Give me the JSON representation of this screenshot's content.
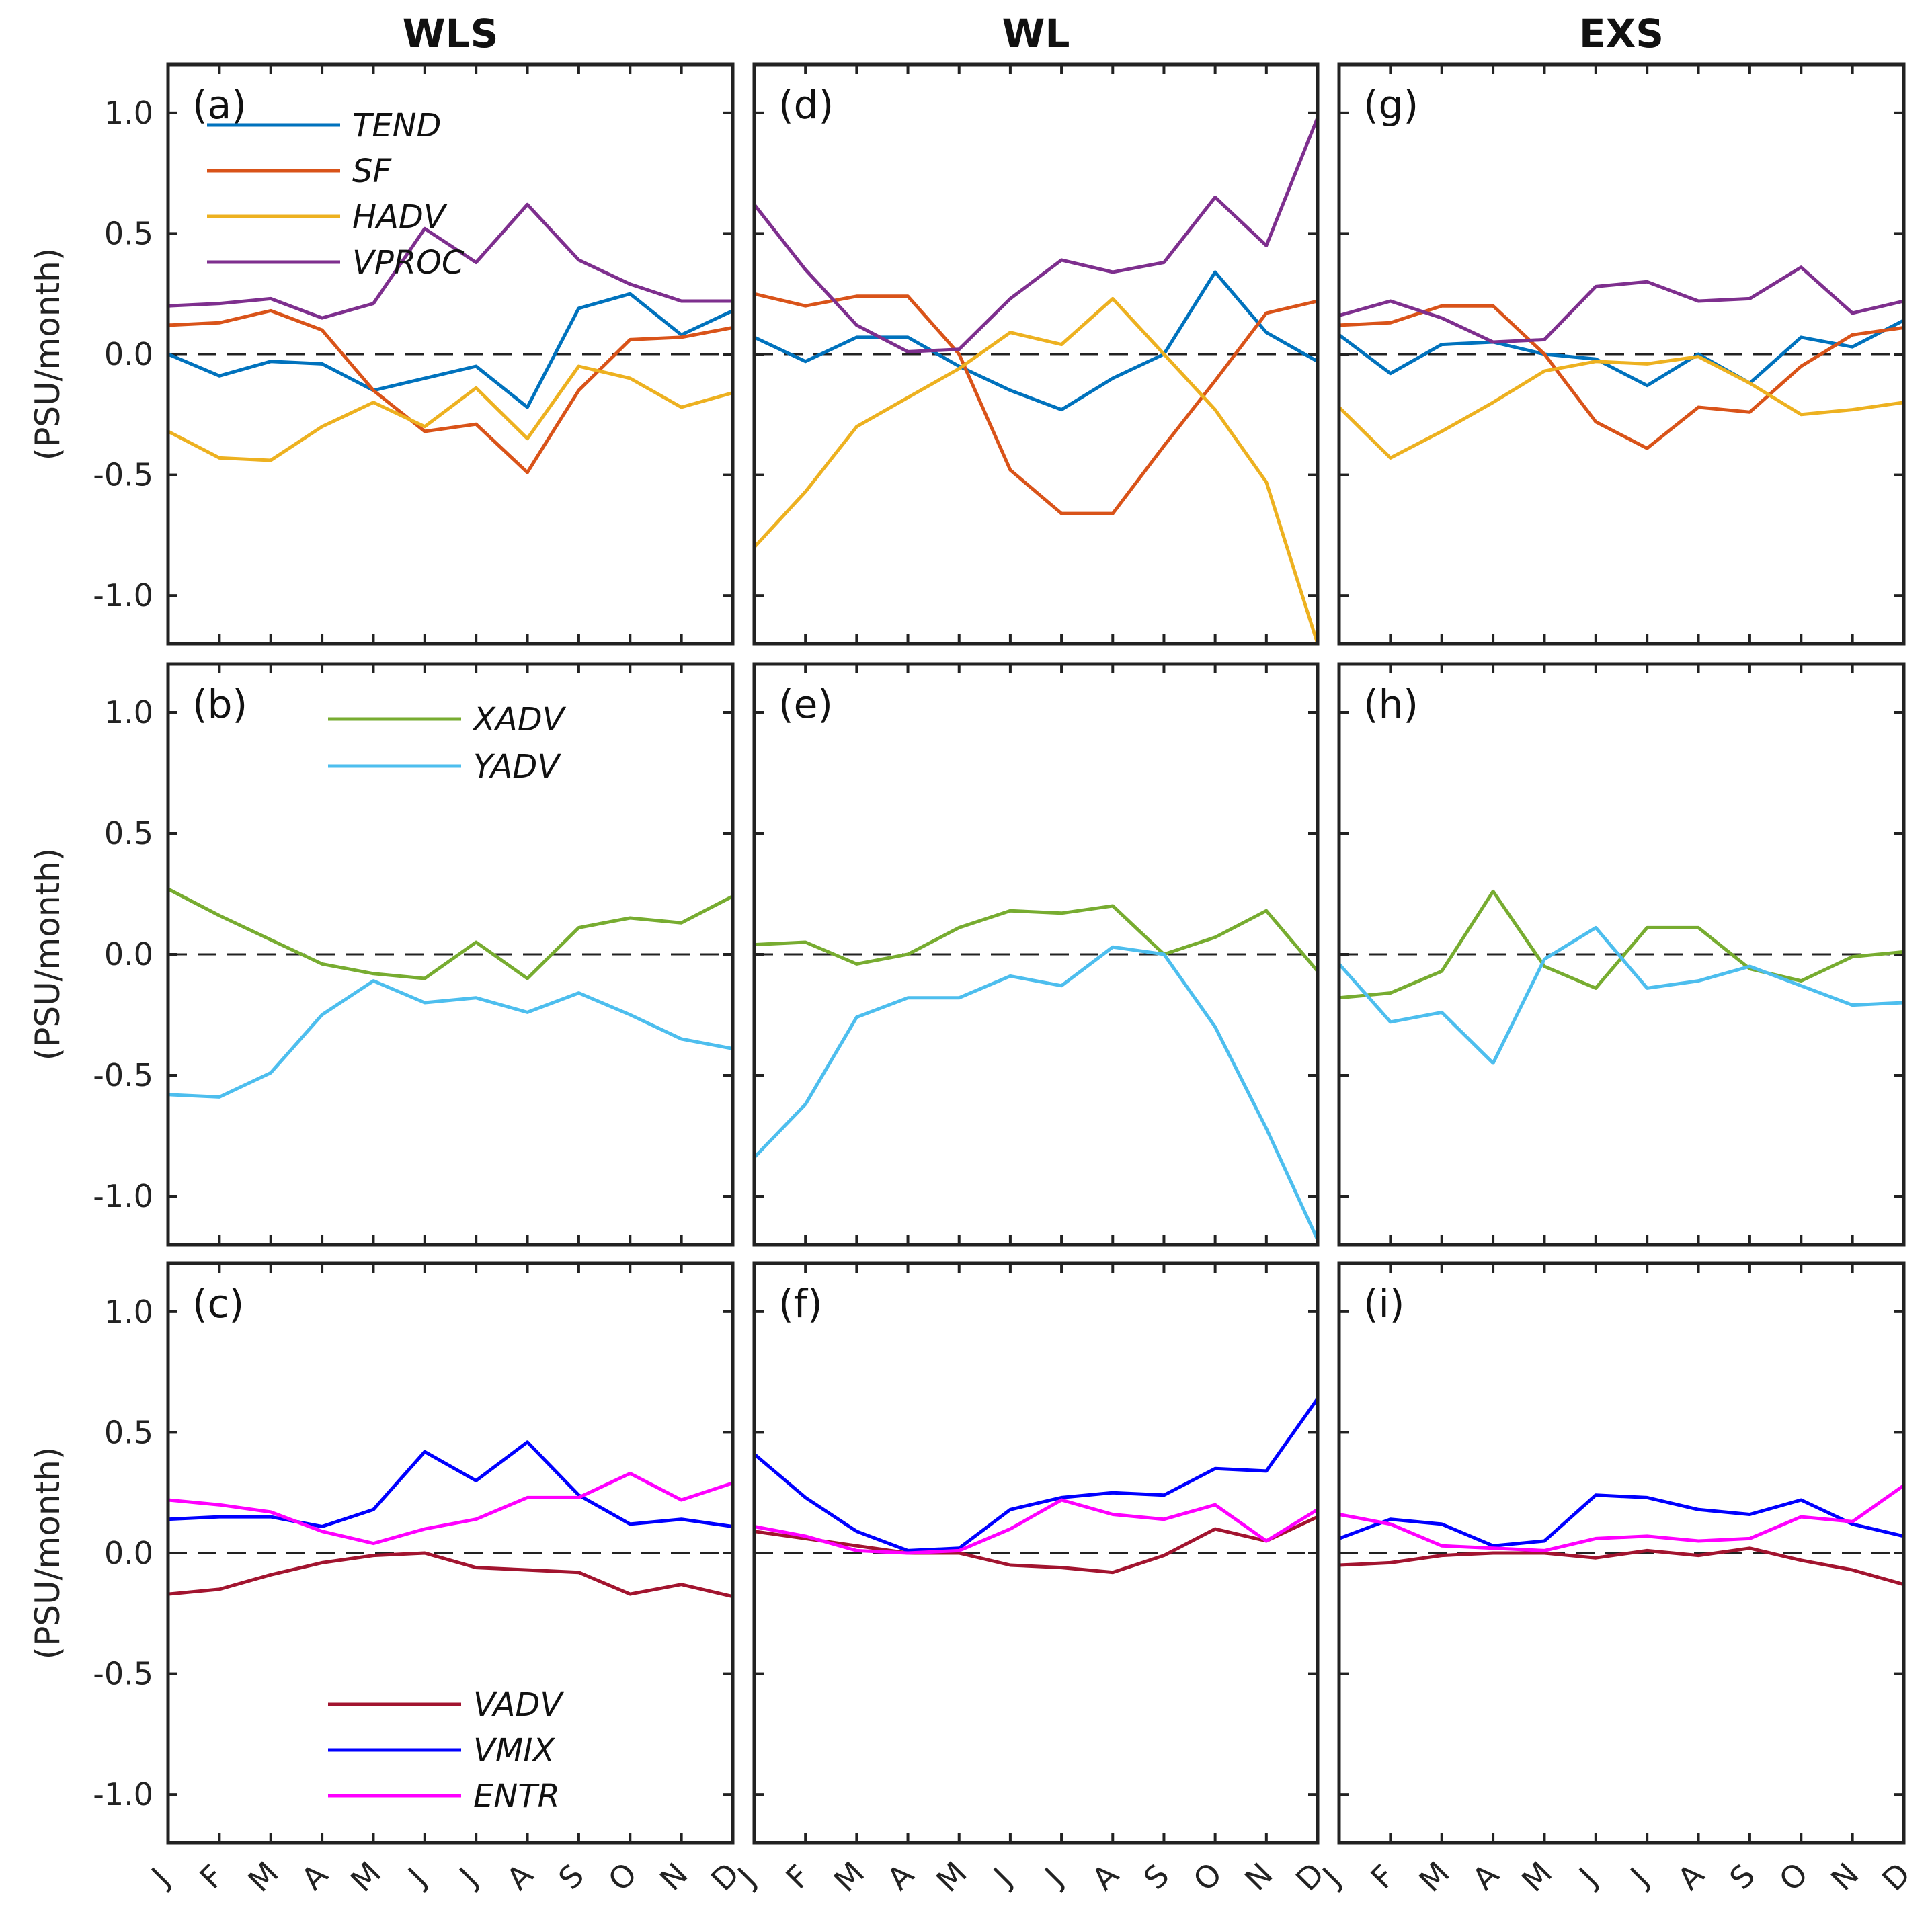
{
  "chart_data": {
    "type": "line",
    "ylabel": "(PSU/month)",
    "ylim": [
      -1.2,
      1.2
    ],
    "yticks": [
      -1.0,
      -0.5,
      0.0,
      0.5,
      1.0
    ],
    "ytick_labels": [
      "-1.0",
      "-0.5",
      "0.0",
      "0.5",
      "1.0"
    ],
    "months": [
      "J",
      "F",
      "M",
      "A",
      "M",
      "J",
      "J",
      "A",
      "S",
      "O",
      "N",
      "D"
    ],
    "column_titles": [
      "WLS",
      "WL",
      "EXS"
    ],
    "colors": {
      "TEND": "#0072BD",
      "SF": "#D95319",
      "HADV": "#EDB120",
      "VPROC": "#7E2F8E",
      "XADV": "#77AC30",
      "YADV": "#4DBEEE",
      "VADV": "#A2142F",
      "VMIX": "#0000FF",
      "ENTR": "#FF00FF"
    },
    "legends": {
      "row1": [
        "TEND",
        "SF",
        "HADV",
        "VPROC"
      ],
      "row2": [
        "XADV",
        "YADV"
      ],
      "row3": [
        "VADV",
        "VMIX",
        "ENTR"
      ]
    },
    "panels": [
      {
        "label": "(a)",
        "column": "WLS",
        "row": 1,
        "series": [
          {
            "name": "TEND",
            "values": [
              0.0,
              -0.09,
              -0.03,
              -0.04,
              -0.15,
              -0.1,
              -0.05,
              -0.22,
              0.19,
              0.25,
              0.08,
              0.18
            ]
          },
          {
            "name": "SF",
            "values": [
              0.12,
              0.13,
              0.18,
              0.1,
              -0.15,
              -0.32,
              -0.29,
              -0.49,
              -0.15,
              0.06,
              0.07,
              0.11
            ]
          },
          {
            "name": "HADV",
            "values": [
              -0.32,
              -0.43,
              -0.44,
              -0.3,
              -0.2,
              -0.3,
              -0.14,
              -0.35,
              -0.05,
              -0.1,
              -0.22,
              -0.16
            ]
          },
          {
            "name": "VPROC",
            "values": [
              0.2,
              0.21,
              0.23,
              0.15,
              0.21,
              0.52,
              0.38,
              0.62,
              0.39,
              0.29,
              0.22,
              0.22
            ]
          }
        ]
      },
      {
        "label": "(b)",
        "column": "WLS",
        "row": 2,
        "series": [
          {
            "name": "XADV",
            "values": [
              0.27,
              0.16,
              0.06,
              -0.04,
              -0.08,
              -0.1,
              0.05,
              -0.1,
              0.11,
              0.15,
              0.13,
              0.24
            ]
          },
          {
            "name": "YADV",
            "values": [
              -0.58,
              -0.59,
              -0.49,
              -0.25,
              -0.11,
              -0.2,
              -0.18,
              -0.24,
              -0.16,
              -0.25,
              -0.35,
              -0.39
            ]
          }
        ]
      },
      {
        "label": "(c)",
        "column": "WLS",
        "row": 3,
        "series": [
          {
            "name": "VADV",
            "values": [
              -0.17,
              -0.15,
              -0.09,
              -0.04,
              -0.01,
              0.0,
              -0.06,
              -0.07,
              -0.08,
              -0.17,
              -0.13,
              -0.18
            ]
          },
          {
            "name": "VMIX",
            "values": [
              0.14,
              0.15,
              0.15,
              0.11,
              0.18,
              0.42,
              0.3,
              0.46,
              0.24,
              0.12,
              0.14,
              0.11
            ]
          },
          {
            "name": "ENTR",
            "values": [
              0.22,
              0.2,
              0.17,
              0.09,
              0.04,
              0.1,
              0.14,
              0.23,
              0.23,
              0.33,
              0.22,
              0.29
            ]
          }
        ]
      },
      {
        "label": "(d)",
        "column": "WL",
        "row": 1,
        "series": [
          {
            "name": "TEND",
            "values": [
              0.07,
              -0.03,
              0.07,
              0.07,
              -0.05,
              -0.15,
              -0.23,
              -0.1,
              0.0,
              0.34,
              0.09,
              -0.03
            ]
          },
          {
            "name": "SF",
            "values": [
              0.25,
              0.2,
              0.24,
              0.24,
              0.0,
              -0.48,
              -0.66,
              -0.66,
              -0.38,
              -0.11,
              0.17,
              0.22
            ]
          },
          {
            "name": "HADV",
            "values": [
              -0.8,
              -0.57,
              -0.3,
              -0.18,
              -0.06,
              0.09,
              0.04,
              0.23,
              0.0,
              -0.23,
              -0.53,
              -1.2
            ]
          },
          {
            "name": "VPROC",
            "values": [
              0.62,
              0.35,
              0.12,
              0.01,
              0.02,
              0.23,
              0.39,
              0.34,
              0.38,
              0.65,
              0.45,
              0.98
            ]
          }
        ]
      },
      {
        "label": "(e)",
        "column": "WL",
        "row": 2,
        "series": [
          {
            "name": "XADV",
            "values": [
              0.04,
              0.05,
              -0.04,
              0.0,
              0.11,
              0.18,
              0.17,
              0.2,
              0.0,
              0.07,
              0.18,
              -0.07
            ]
          },
          {
            "name": "YADV",
            "values": [
              -0.84,
              -0.62,
              -0.26,
              -0.18,
              -0.18,
              -0.09,
              -0.13,
              0.03,
              0.0,
              -0.3,
              -0.72,
              -1.18
            ]
          }
        ]
      },
      {
        "label": "(f)",
        "column": "WL",
        "row": 3,
        "series": [
          {
            "name": "VADV",
            "values": [
              0.09,
              0.06,
              0.03,
              0.0,
              0.0,
              -0.05,
              -0.06,
              -0.08,
              -0.01,
              0.1,
              0.05,
              0.15
            ]
          },
          {
            "name": "VMIX",
            "values": [
              0.41,
              0.23,
              0.09,
              0.01,
              0.02,
              0.18,
              0.23,
              0.25,
              0.24,
              0.35,
              0.34,
              0.64
            ]
          },
          {
            "name": "ENTR",
            "values": [
              0.11,
              0.07,
              0.01,
              0.0,
              0.01,
              0.1,
              0.22,
              0.16,
              0.14,
              0.2,
              0.05,
              0.18
            ]
          }
        ]
      },
      {
        "label": "(g)",
        "column": "EXS",
        "row": 1,
        "series": [
          {
            "name": "TEND",
            "values": [
              0.08,
              -0.08,
              0.04,
              0.05,
              0.0,
              -0.02,
              -0.13,
              0.0,
              -0.12,
              0.07,
              0.03,
              0.14
            ]
          },
          {
            "name": "SF",
            "values": [
              0.12,
              0.13,
              0.2,
              0.2,
              0.0,
              -0.28,
              -0.39,
              -0.22,
              -0.24,
              -0.05,
              0.08,
              0.11
            ]
          },
          {
            "name": "HADV",
            "values": [
              -0.22,
              -0.43,
              -0.32,
              -0.2,
              -0.07,
              -0.03,
              -0.04,
              -0.01,
              -0.12,
              -0.25,
              -0.23,
              -0.2
            ]
          },
          {
            "name": "VPROC",
            "values": [
              0.16,
              0.22,
              0.15,
              0.05,
              0.06,
              0.28,
              0.3,
              0.22,
              0.23,
              0.36,
              0.17,
              0.22
            ]
          }
        ]
      },
      {
        "label": "(h)",
        "column": "EXS",
        "row": 2,
        "series": [
          {
            "name": "XADV",
            "values": [
              -0.18,
              -0.16,
              -0.07,
              0.26,
              -0.05,
              -0.14,
              0.11,
              0.11,
              -0.06,
              -0.11,
              -0.01,
              0.01
            ]
          },
          {
            "name": "YADV",
            "values": [
              -0.04,
              -0.28,
              -0.24,
              -0.45,
              -0.02,
              0.11,
              -0.14,
              -0.11,
              -0.05,
              -0.13,
              -0.21,
              -0.2
            ]
          }
        ]
      },
      {
        "label": "(i)",
        "column": "EXS",
        "row": 3,
        "series": [
          {
            "name": "VADV",
            "values": [
              -0.05,
              -0.04,
              -0.01,
              0.0,
              0.0,
              -0.02,
              0.01,
              -0.01,
              0.02,
              -0.03,
              -0.07,
              -0.13
            ]
          },
          {
            "name": "VMIX",
            "values": [
              0.06,
              0.14,
              0.12,
              0.03,
              0.05,
              0.24,
              0.23,
              0.18,
              0.16,
              0.22,
              0.12,
              0.07
            ]
          },
          {
            "name": "ENTR",
            "values": [
              0.16,
              0.12,
              0.03,
              0.02,
              0.01,
              0.06,
              0.07,
              0.05,
              0.06,
              0.15,
              0.13,
              0.28
            ]
          }
        ]
      }
    ]
  }
}
